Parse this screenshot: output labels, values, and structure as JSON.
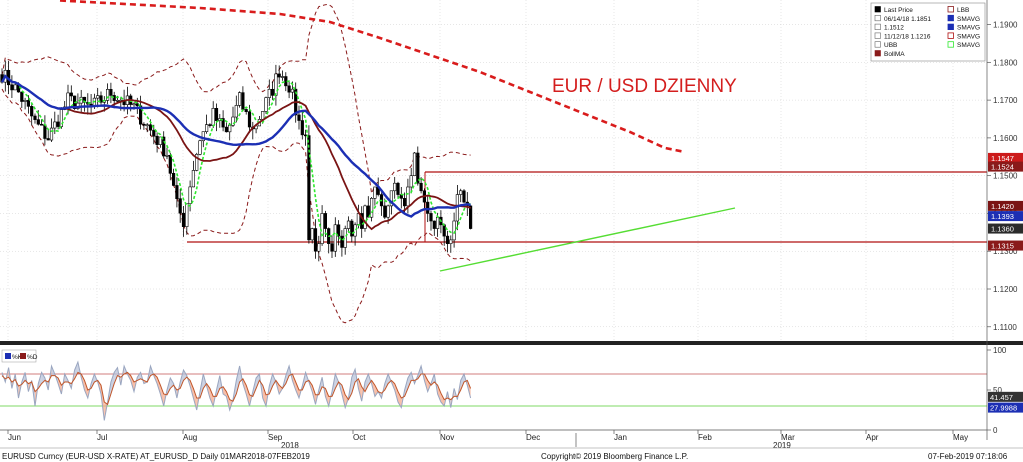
{
  "chart_data": {
    "type": "candlestick",
    "title": "EUR / USD DZIENNY",
    "colors": {
      "up": "#ffffff",
      "down": "#000000",
      "sma_blue": "#1c2fb4",
      "sma_darkred": "#7a1414",
      "sma_green": "#2ee82e",
      "bollinger": "#8a1a1a",
      "long_sma_red": "#d91c1c",
      "support_line": "#b01010",
      "trendline": "#55dd33",
      "stoch_k": "#9aa6c0",
      "stoch_d": "#c0562a",
      "stoch_fill": "#f4a98c"
    },
    "y_axis": {
      "ticks": [
        "1.1900",
        "1.1800",
        "1.1700",
        "1.1600",
        "1.1500",
        "1.1400",
        "1.1300",
        "1.1200",
        "1.1100"
      ],
      "range": [
        1.1065,
        1.1965
      ]
    },
    "x_axis": {
      "months": [
        "Jun",
        "Jul",
        "Aug",
        "Sep",
        "Oct",
        "Nov",
        "Dec",
        "Jan",
        "Feb",
        "Mar",
        "Apr",
        "May"
      ],
      "years": [
        "2018",
        "2019"
      ]
    },
    "price_tags": [
      {
        "label": "1.1547",
        "value": 1.1547,
        "color": "#cc1a1a"
      },
      {
        "label": "1.1524",
        "value": 1.1524,
        "color": "#8a1a1a"
      },
      {
        "label": "1.1420",
        "value": 1.142,
        "color": "#7a1414"
      },
      {
        "label": "1.1393",
        "value": 1.1393,
        "color": "#1c2fb4"
      },
      {
        "label": "1.1360",
        "value": 1.136,
        "color": "#2b2b2b"
      },
      {
        "label": "1.1315",
        "value": 1.1315,
        "color": "#8a1a1a"
      }
    ],
    "legend": {
      "rows": [
        {
          "icon": "black-square",
          "text": "Last Price",
          "icon2": "outline-bracket",
          "text2": "LBB"
        },
        {
          "icon": "t-mark",
          "text": "06/14/18 1.1851",
          "icon2": "blue-square",
          "text2": "SMAVG"
        },
        {
          "icon": "plus-mark",
          "text": "1.1512",
          "icon2": "blue-square",
          "text2": "SMAVG"
        },
        {
          "icon": "inv-t-mark",
          "text": "11/12/18 1.1216",
          "icon2": "red-dash",
          "text2": "SMAVG"
        },
        {
          "icon": "outline-bracket",
          "text": "UBB",
          "icon2": "green-dash",
          "text2": "SMAVG"
        },
        {
          "icon": "darkred-square",
          "text": "BollMA",
          "icon2": "",
          "text2": ""
        }
      ]
    },
    "stochastic": {
      "legend": [
        "%K",
        "%D"
      ],
      "ticks": [
        "100",
        "50",
        "0"
      ],
      "tags": [
        {
          "label": "41.457",
          "value": 41.457,
          "color": "#333333"
        },
        {
          "label": "27.9988",
          "value": 27.9988,
          "color": "#1c2fb4"
        }
      ],
      "overbought": 70,
      "oversold": 30,
      "k": [
        72,
        60,
        78,
        52,
        70,
        40,
        60,
        72,
        48,
        62,
        30,
        58,
        72,
        65,
        50,
        80,
        70,
        58,
        45,
        70,
        62,
        52,
        75,
        85,
        66,
        50,
        40,
        58,
        70,
        60,
        45,
        12,
        35,
        60,
        72,
        78,
        56,
        80,
        70,
        62,
        48,
        66,
        72,
        58,
        60,
        80,
        68,
        58,
        45,
        30,
        50,
        65,
        58,
        40,
        60,
        75,
        68,
        55,
        40,
        25,
        48,
        70,
        55,
        40,
        30,
        50,
        68,
        45,
        42,
        25,
        38,
        62,
        80,
        58,
        45,
        30,
        48,
        65,
        70,
        40,
        30,
        55,
        70,
        60,
        45,
        52,
        68,
        80,
        62,
        50,
        40,
        55,
        72,
        60,
        48,
        32,
        50,
        66,
        42,
        30,
        48,
        70,
        60,
        45,
        28,
        40,
        66,
        76,
        52,
        36,
        60,
        70,
        58,
        42,
        48,
        40,
        58,
        70,
        60,
        50,
        35,
        28,
        50,
        65,
        72,
        58,
        68,
        80,
        62,
        48,
        58,
        70,
        45,
        35,
        30,
        48,
        28,
        52,
        38,
        62,
        70,
        56,
        40
      ],
      "d": [
        68,
        64,
        66,
        60,
        63,
        55,
        57,
        62,
        58,
        60,
        48,
        52,
        58,
        62,
        60,
        68,
        68,
        65,
        56,
        60,
        60,
        58,
        64,
        72,
        70,
        62,
        50,
        52,
        60,
        62,
        56,
        35,
        32,
        45,
        58,
        68,
        66,
        70,
        72,
        68,
        60,
        62,
        64,
        62,
        60,
        68,
        70,
        66,
        56,
        45,
        44,
        52,
        56,
        50,
        52,
        62,
        66,
        62,
        52,
        40,
        40,
        52,
        58,
        52,
        42,
        42,
        52,
        54,
        48,
        38,
        36,
        45,
        60,
        64,
        56,
        44,
        42,
        52,
        62,
        56,
        44,
        45,
        55,
        62,
        56,
        52,
        58,
        68,
        70,
        60,
        50,
        50,
        60,
        62,
        56,
        44,
        44,
        54,
        52,
        42,
        42,
        52,
        60,
        56,
        44,
        38,
        46,
        60,
        64,
        54,
        48,
        56,
        62,
        56,
        48,
        46,
        50,
        58,
        62,
        58,
        48,
        40,
        42,
        52,
        62,
        62,
        64,
        70,
        70,
        62,
        56,
        60,
        56,
        46,
        38,
        40,
        38,
        42,
        42,
        50,
        60,
        62,
        52
      ]
    }
  }
}
